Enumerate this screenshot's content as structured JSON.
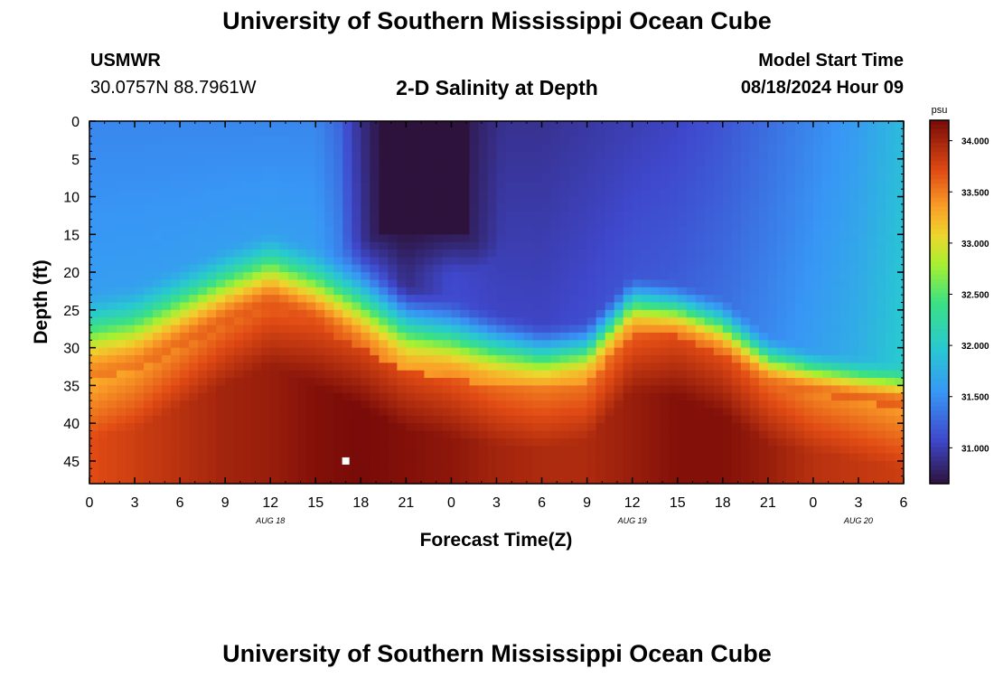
{
  "header": {
    "title": "University of Southern Mississippi Ocean Cube",
    "station": "USMWR",
    "coords": "30.0757N  88.7961W",
    "subtitle": "2-D Salinity at Depth",
    "model_start_label": "Model Start Time",
    "model_start_value": "08/18/2024 Hour 09"
  },
  "footer": {
    "title": "University of Southern Mississippi Ocean Cube"
  },
  "chart_data": {
    "type": "heatmap",
    "title": "2-D Salinity at Depth",
    "xlabel": "Forecast Time(Z)",
    "ylabel": "Depth (ft)",
    "x_ticks": [
      "0",
      "3",
      "6",
      "9",
      "12",
      "15",
      "18",
      "21",
      "0",
      "3",
      "6",
      "9",
      "12",
      "15",
      "18",
      "21",
      "0",
      "3",
      "6"
    ],
    "date_labels": [
      {
        "label": "AUG 18",
        "x_hours": 12
      },
      {
        "label": "AUG 19",
        "x_hours": 36
      },
      {
        "label": "AUG 20",
        "x_hours": 51
      }
    ],
    "y_ticks": [
      0,
      5,
      10,
      15,
      20,
      25,
      30,
      35,
      40,
      45
    ],
    "xlim_hours": [
      0,
      54
    ],
    "ylim_ft": [
      0,
      48
    ],
    "y_inverted": true,
    "colorbar": {
      "unit": "psu",
      "min": 30.65,
      "max": 34.2,
      "ticks": [
        "34.000",
        "33.500",
        "33.000",
        "32.500",
        "32.000",
        "31.500",
        "31.000"
      ]
    },
    "layers": {
      "x_hours": [
        0,
        3,
        6,
        9,
        12,
        15,
        18,
        21,
        24,
        27,
        30,
        33,
        36,
        39,
        42,
        45,
        48,
        51,
        54
      ],
      "upper_salinity": [
        31.45,
        31.45,
        31.45,
        31.45,
        31.45,
        31.45,
        31.1,
        30.7,
        30.95,
        30.9,
        30.9,
        30.95,
        31.0,
        31.05,
        31.15,
        31.3,
        31.45,
        31.6,
        31.85
      ],
      "halocline_top_ft": [
        22,
        21,
        18.5,
        16,
        14,
        16,
        18,
        21,
        23,
        25,
        26.5,
        26,
        20,
        21,
        23,
        28,
        30,
        31,
        32
      ],
      "halocline_bottom_ft": [
        34,
        33,
        30,
        27,
        24.5,
        27,
        30,
        33,
        34,
        35,
        35.5,
        34.5,
        28,
        28.5,
        31,
        35,
        36,
        37,
        38
      ],
      "bottom_salinity": [
        33.7,
        33.8,
        33.9,
        34.0,
        34.05,
        34.15,
        34.2,
        34.15,
        34.1,
        34.0,
        33.95,
        33.95,
        34.05,
        34.15,
        34.15,
        34.05,
        33.9,
        33.85,
        33.8
      ]
    },
    "fresh_lens": {
      "x_start_hours": 19,
      "x_end_hours": 25,
      "depth_bottom_ft": 15,
      "salinity": 30.65
    },
    "marker": {
      "x_hours": 17,
      "depth_ft": 45,
      "color": "#ffffff"
    }
  }
}
